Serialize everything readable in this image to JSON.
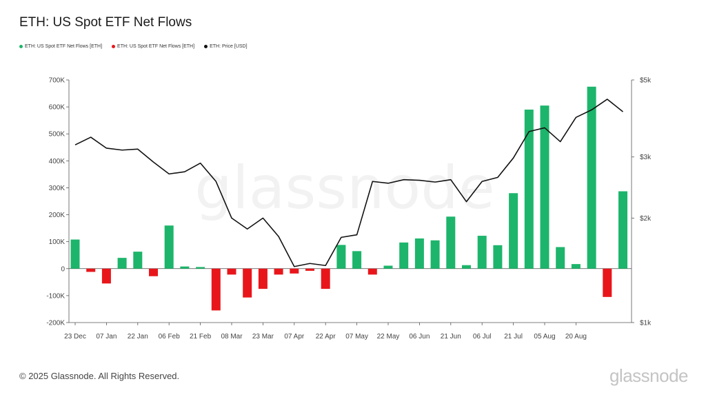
{
  "header": {
    "title": "ETH: US Spot ETF Net Flows"
  },
  "legend": [
    {
      "label": "ETH: US Spot ETF Net Flows [ETH]",
      "color": "#1db56b"
    },
    {
      "label": "ETH: US Spot ETF Net Flows [ETH]",
      "color": "#e8161b"
    },
    {
      "label": "ETH: Price [USD]",
      "color": "#111111"
    }
  ],
  "footer": {
    "copyright": "© 2025 Glassnode. All Rights Reserved.",
    "brand": "glassnode"
  },
  "watermark": "glassnode",
  "chart_data": {
    "type": "bar",
    "title": "ETH: US Spot ETF Net Flows",
    "colors": {
      "positive": "#1db56b",
      "negative": "#e8161b",
      "price": "#111111"
    },
    "x_tick_labels": [
      "23 Dec",
      "07 Jan",
      "22 Jan",
      "06 Feb",
      "21 Feb",
      "08 Mar",
      "23 Mar",
      "07 Apr",
      "22 Apr",
      "07 May",
      "22 May",
      "06 Jun",
      "21 Jun",
      "06 Jul",
      "21 Jul",
      "05 Aug",
      "20 Aug"
    ],
    "y_left": {
      "ticks": [
        "-200K",
        "-100K",
        "0",
        "100K",
        "200K",
        "300K",
        "400K",
        "500K",
        "600K",
        "700K"
      ],
      "ylim": [
        -200000,
        700000
      ]
    },
    "y_right": {
      "ticks": [
        "$1k",
        "$2k",
        "$3k",
        "$5k"
      ],
      "scale": "log",
      "ylim": [
        1000,
        5000
      ]
    },
    "series": [
      {
        "name": "ETH: US Spot ETF Net Flows [ETH]",
        "kind": "bar",
        "values": [
          108000,
          -12000,
          -55000,
          40000,
          63000,
          -28000,
          160000,
          8000,
          6000,
          -155000,
          -22000,
          -107000,
          -75000,
          -22000,
          -18000,
          -8000,
          -75000,
          88000,
          65000,
          -22000,
          11000,
          97000,
          112000,
          105000,
          193000,
          13000,
          122000,
          87000,
          280000,
          590000,
          605000,
          80000,
          17000,
          675000,
          -105000,
          287000
        ]
      },
      {
        "name": "ETH: Price [USD]",
        "kind": "line",
        "axis": "right",
        "values": [
          3250,
          3420,
          3180,
          3140,
          3160,
          2900,
          2680,
          2720,
          2880,
          2550,
          2000,
          1860,
          2000,
          1770,
          1450,
          1480,
          1460,
          1760,
          1790,
          2550,
          2520,
          2580,
          2570,
          2540,
          2580,
          2230,
          2550,
          2620,
          2980,
          3550,
          3640,
          3320,
          3900,
          4100,
          4400,
          4050
        ]
      }
    ]
  }
}
